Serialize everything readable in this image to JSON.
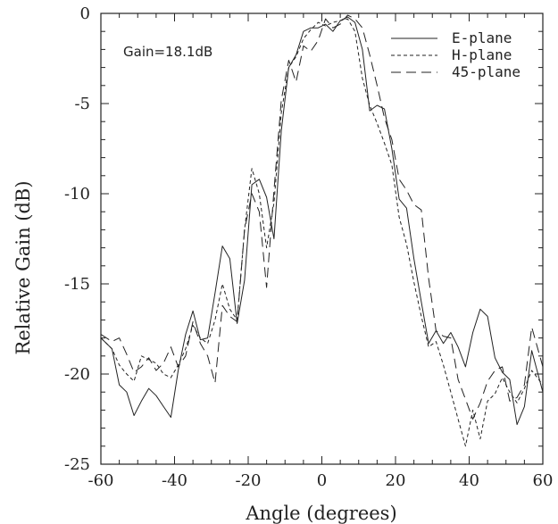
{
  "chart_data": {
    "type": "line",
    "title": "",
    "xlabel": "Angle    (degrees)",
    "ylabel": "Relative Gain (dB)",
    "xlim": [
      -60,
      60
    ],
    "ylim": [
      -25,
      0
    ],
    "xticks": [
      -60,
      -40,
      -20,
      0,
      20,
      40,
      60
    ],
    "yticks": [
      0,
      -5,
      -10,
      -15,
      -20,
      -25
    ],
    "grid": false,
    "legend_position": "top-right",
    "annotation": "Gain=18.1dB",
    "series": [
      {
        "name": "E-plane",
        "dash": "solid",
        "x": [
          -60,
          -57,
          -55,
          -53,
          -51,
          -49,
          -47,
          -45,
          -43,
          -41,
          -39,
          -37,
          -35,
          -33,
          -31,
          -29,
          -27,
          -25,
          -23,
          -21,
          -19,
          -17,
          -15,
          -13,
          -11,
          -9,
          -7,
          -5,
          -3,
          -1,
          1,
          3,
          5,
          7,
          9,
          11,
          13,
          15,
          17,
          19,
          21,
          23,
          25,
          27,
          29,
          31,
          33,
          35,
          37,
          39,
          41,
          43,
          45,
          47,
          49,
          51,
          53,
          55,
          57,
          60
        ],
        "y": [
          -18.0,
          -18.6,
          -20.6,
          -21.0,
          -22.3,
          -21.5,
          -20.8,
          -21.2,
          -21.8,
          -22.4,
          -19.8,
          -17.8,
          -16.5,
          -18.1,
          -18.0,
          -15.5,
          -12.9,
          -13.6,
          -17.2,
          -14.8,
          -9.5,
          -9.2,
          -10.2,
          -12.5,
          -6.5,
          -3.0,
          -2.3,
          -1.0,
          -0.8,
          -0.8,
          -0.6,
          -1.0,
          -0.4,
          -0.2,
          -0.5,
          -2.0,
          -5.4,
          -5.1,
          -5.3,
          -7.5,
          -10.3,
          -10.8,
          -13.6,
          -16.0,
          -18.3,
          -17.6,
          -18.3,
          -17.7,
          -18.5,
          -19.6,
          -17.7,
          -16.4,
          -16.8,
          -19.1,
          -19.9,
          -20.3,
          -22.8,
          -21.8,
          -18.7,
          -21.0
        ]
      },
      {
        "name": "H-plane",
        "dash": "short",
        "x": [
          -60,
          -57,
          -55,
          -53,
          -51,
          -49,
          -47,
          -45,
          -43,
          -41,
          -39,
          -37,
          -35,
          -33,
          -31,
          -29,
          -27,
          -25,
          -23,
          -21,
          -19,
          -17,
          -15,
          -13,
          -11,
          -9,
          -7,
          -5,
          -3,
          -1,
          1,
          3,
          5,
          7,
          9,
          11,
          13,
          15,
          17,
          19,
          21,
          23,
          25,
          27,
          29,
          31,
          33,
          35,
          37,
          39,
          41,
          43,
          45,
          47,
          49,
          51,
          53,
          55,
          57,
          60
        ],
        "y": [
          -18.0,
          -18.6,
          -19.5,
          -20.0,
          -20.4,
          -19.0,
          -19.2,
          -19.4,
          -20.0,
          -20.2,
          -19.5,
          -18.6,
          -17.3,
          -18.0,
          -18.3,
          -17.0,
          -15.0,
          -16.4,
          -17.0,
          -12.0,
          -8.6,
          -10.0,
          -13.0,
          -10.5,
          -5.5,
          -3.0,
          -2.4,
          -1.4,
          -0.9,
          -0.5,
          -0.7,
          -0.5,
          -0.4,
          -0.3,
          -1.0,
          -3.6,
          -5.1,
          -6.1,
          -7.2,
          -8.4,
          -11.3,
          -12.8,
          -14.9,
          -16.8,
          -18.5,
          -18.2,
          -19.5,
          -21.0,
          -22.5,
          -24.0,
          -22.0,
          -23.6,
          -21.5,
          -21.1,
          -20.2,
          -21.0,
          -21.6,
          -20.8,
          -19.8,
          -20.6
        ]
      },
      {
        "name": "45-plane",
        "dash": "long",
        "x": [
          -60,
          -57,
          -55,
          -53,
          -51,
          -49,
          -47,
          -45,
          -43,
          -41,
          -39,
          -37,
          -35,
          -33,
          -31,
          -29,
          -27,
          -25,
          -23,
          -21,
          -19,
          -17,
          -15,
          -13,
          -11,
          -9,
          -7,
          -5,
          -3,
          -1,
          1,
          3,
          5,
          7,
          9,
          11,
          13,
          15,
          17,
          19,
          21,
          23,
          25,
          27,
          29,
          31,
          33,
          35,
          37,
          39,
          41,
          43,
          45,
          47,
          49,
          51,
          53,
          55,
          57,
          60
        ],
        "y": [
          -17.8,
          -18.2,
          -18.0,
          -18.9,
          -19.9,
          -19.6,
          -19.1,
          -19.8,
          -19.4,
          -18.5,
          -19.6,
          -19.0,
          -17.1,
          -18.3,
          -19.0,
          -20.5,
          -16.2,
          -16.8,
          -17.1,
          -12.0,
          -10.0,
          -11.0,
          -15.2,
          -9.8,
          -4.8,
          -2.6,
          -3.8,
          -1.8,
          -2.1,
          -1.5,
          -0.3,
          -0.8,
          -0.6,
          -0.1,
          -0.3,
          -0.8,
          -2.3,
          -4.0,
          -5.8,
          -7.0,
          -9.2,
          -9.8,
          -10.6,
          -10.9,
          -14.7,
          -17.6,
          -17.9,
          -18.0,
          -20.3,
          -21.4,
          -22.5,
          -21.6,
          -20.4,
          -19.8,
          -19.6,
          -21.5,
          -21.3,
          -20.6,
          -17.4,
          -19.6
        ]
      }
    ]
  }
}
